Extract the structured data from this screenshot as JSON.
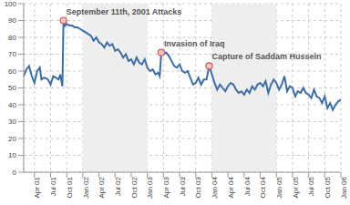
{
  "chart_data": {
    "type": "line",
    "color": "#3b6ea8",
    "grid": true,
    "x": [
      1.0,
      1.5,
      2.0,
      2.5,
      3.0,
      3.5,
      4.0,
      4.3,
      4.7,
      5.0,
      5.5,
      6.0,
      6.5,
      7.0,
      7.5,
      7.8,
      8.2,
      8.4,
      8.7,
      9.0,
      9.5,
      10.0,
      10.5,
      11.0,
      11.5,
      12.0,
      12.5,
      13.0,
      13.5,
      14.0,
      14.5,
      15.0,
      15.5,
      16.0,
      16.5,
      17.0,
      17.5,
      18.0,
      18.5,
      19.0,
      19.5,
      20.0,
      20.5,
      21.0,
      21.5,
      22.0,
      22.5,
      23.0,
      23.5,
      24.0,
      24.5,
      25.0,
      25.5,
      26.0,
      26.3,
      26.6,
      27.0,
      27.5,
      28.0,
      28.5,
      29.0,
      29.5,
      30.0,
      30.5,
      31.0,
      31.5,
      32.0,
      32.5,
      33.0,
      33.5,
      34.0,
      34.5,
      35.0,
      35.5,
      36.0,
      36.5,
      37.0,
      37.5,
      38.0,
      38.5,
      39.0,
      39.5,
      40.0,
      40.5,
      41.0,
      41.5,
      42.0,
      42.5,
      43.0,
      43.5,
      44.0,
      44.5,
      45.0,
      45.5,
      46.0,
      46.5,
      47.0,
      47.5,
      48.0,
      48.5,
      49.0,
      49.5,
      50.0,
      50.5,
      51.0,
      51.5,
      52.0,
      52.5,
      53.0,
      53.5,
      54.0,
      54.5,
      55.0,
      55.5,
      56.0,
      56.5,
      57.0,
      57.5,
      58.0,
      58.5,
      59.0,
      59.5,
      60.0
    ],
    "values": [
      57,
      61,
      63,
      57,
      53,
      60,
      62,
      55,
      56,
      56,
      55,
      52,
      57,
      56,
      55,
      58,
      51,
      90,
      87,
      88,
      87,
      87,
      86,
      86,
      85,
      84,
      83,
      82,
      81,
      78,
      80,
      77,
      76,
      74,
      77,
      75,
      76,
      72,
      73,
      71,
      68,
      70,
      66,
      67,
      64,
      68,
      65,
      64,
      67,
      62,
      60,
      61,
      58,
      59,
      57,
      71,
      70,
      71,
      69,
      66,
      63,
      62,
      64,
      60,
      59,
      60,
      56,
      52,
      53,
      56,
      52,
      55,
      55,
      63,
      58,
      53,
      49,
      52,
      50,
      48,
      51,
      53,
      52,
      49,
      47,
      48,
      46,
      49,
      47,
      51,
      49,
      52,
      53,
      51,
      54,
      47,
      52,
      55,
      53,
      49,
      52,
      57,
      48,
      51,
      50,
      45,
      48,
      47,
      50,
      47,
      46,
      44,
      49,
      45,
      44,
      41,
      45,
      38,
      41,
      37,
      40,
      42,
      43
    ],
    "xlim": [
      1,
      60
    ],
    "xticks": [
      {
        "value": 3,
        "label": "Apr 01"
      },
      {
        "value": 6,
        "label": "Jul 01"
      },
      {
        "value": 9,
        "label": "Oct 01"
      },
      {
        "value": 12,
        "label": "Jan 02"
      },
      {
        "value": 15,
        "label": "Apr 02"
      },
      {
        "value": 18,
        "label": "Jul 02"
      },
      {
        "value": 21,
        "label": "Oct 02"
      },
      {
        "value": 24,
        "label": "Jan 03"
      },
      {
        "value": 27,
        "label": "Apr 03"
      },
      {
        "value": 30,
        "label": "Jul 03"
      },
      {
        "value": 33,
        "label": "Oct 03"
      },
      {
        "value": 36,
        "label": "Jan 04"
      },
      {
        "value": 39,
        "label": "Apr 04"
      },
      {
        "value": 42,
        "label": "Jul 04"
      },
      {
        "value": 45,
        "label": "Oct 04"
      },
      {
        "value": 48,
        "label": "Jan 05"
      },
      {
        "value": 51,
        "label": "Apr 05"
      },
      {
        "value": 54,
        "label": "Jul 05"
      },
      {
        "value": 57,
        "label": "Oct 05"
      },
      {
        "value": 60,
        "label": "Jan 06"
      }
    ],
    "ylim": [
      0,
      100
    ],
    "yticks": [
      0,
      10,
      20,
      30,
      40,
      50,
      60,
      70,
      80,
      90,
      100
    ],
    "annotations": [
      {
        "x": 8.4,
        "y": 90,
        "text": "September 11th, 2001 Attacks"
      },
      {
        "x": 26.6,
        "y": 71,
        "text": "Invasion of Iraq"
      },
      {
        "x": 35.5,
        "y": 63,
        "text": "Capture of Saddam Hussein"
      }
    ]
  }
}
